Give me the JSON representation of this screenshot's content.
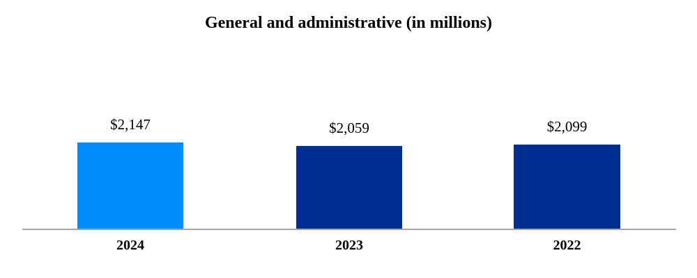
{
  "title": "General and administrative (in millions)",
  "chart_data": {
    "type": "bar",
    "title": "General and administrative (in millions)",
    "categories": [
      "2024",
      "2023",
      "2022"
    ],
    "values": [
      2147,
      2059,
      2099
    ],
    "value_labels": [
      "$2,147",
      "$2,059",
      "$2,099"
    ],
    "unit": "millions (USD)",
    "bar_colors": [
      "#008CFA",
      "#002E91",
      "#002E91"
    ],
    "axis_color": "#A6A6A6",
    "ylim": [
      0,
      2147
    ],
    "grid": false,
    "legend": false,
    "value_label_position": "above-bar"
  }
}
